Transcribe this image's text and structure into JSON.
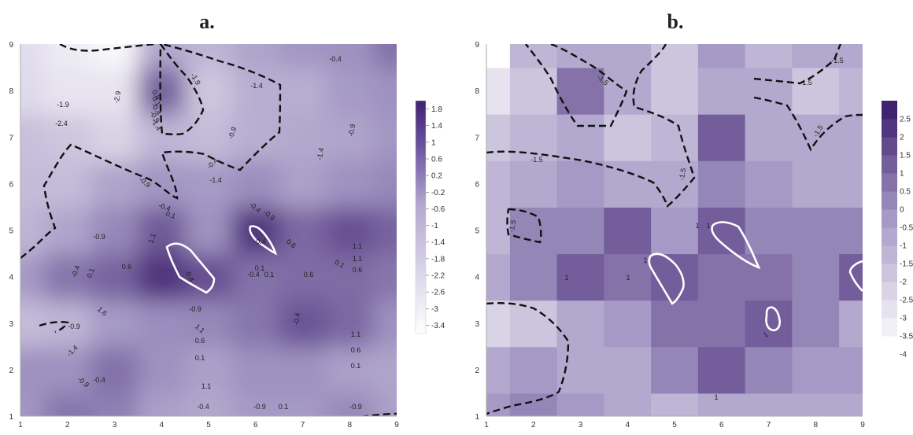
{
  "colors": {
    "low": "#ffffff",
    "mid": "#a497c4",
    "high": "#3f2270",
    "neg_contour": "#111111",
    "pos_contour": "#ffffff"
  },
  "chart_data": [
    {
      "panel": "a.",
      "type": "heatmap",
      "style": "smooth",
      "x_ticks": [
        "1",
        "2",
        "3",
        "4",
        "5",
        "6",
        "7",
        "8",
        "9"
      ],
      "y_ticks": [
        "1",
        "2",
        "3",
        "4",
        "5",
        "6",
        "7",
        "8",
        "9"
      ],
      "xlim": [
        1,
        9
      ],
      "ylim": [
        1,
        9
      ],
      "colorbar": {
        "range": [
          -3.6,
          2.0
        ],
        "ticks": [
          "1.8",
          "1.4",
          "1",
          "0.6",
          "0.2",
          "-0.2",
          "-0.6",
          "-1",
          "-1.4",
          "-1.8",
          "-2.2",
          "-2.6",
          "-3",
          "-3.4"
        ]
      },
      "grid_z": [
        [
          -0.5,
          0.2,
          0.0,
          -0.8,
          -1.0,
          -0.6,
          -0.6,
          -0.2,
          -0.8
        ],
        [
          -0.4,
          -0.4,
          0.3,
          -0.4,
          -0.8,
          -0.4,
          -0.4,
          -0.8,
          -0.9
        ],
        [
          -1.6,
          -1.4,
          -0.6,
          -0.3,
          -0.2,
          0.2,
          0.9,
          0.5,
          -0.4
        ],
        [
          -0.6,
          0.2,
          0.6,
          1.6,
          1.0,
          0.3,
          0.4,
          0.4,
          0.2
        ],
        [
          -1.4,
          -0.9,
          -0.2,
          0.8,
          -0.4,
          1.6,
          0.5,
          1.0,
          0.6
        ],
        [
          -1.6,
          -1.6,
          -0.9,
          -0.5,
          -0.6,
          -0.3,
          -0.8,
          -0.4,
          -0.2
        ],
        [
          -1.7,
          -1.9,
          -2.3,
          -1.4,
          -1.6,
          -1.2,
          -1.0,
          -0.9,
          -0.5
        ],
        [
          -2.5,
          -2.8,
          -2.8,
          0.6,
          -1.9,
          -1.2,
          -1.2,
          -0.6,
          -0.4
        ],
        [
          -2.6,
          -3.0,
          -3.4,
          -1.0,
          -1.4,
          -0.9,
          -0.5,
          -0.4,
          0.3
        ]
      ],
      "contour_labels": [
        "-2.9",
        "0.6",
        "0.1",
        "-0.4",
        "-0.9",
        "-1.4",
        "-1.9",
        "-2.4",
        "-1.9",
        "-1.4",
        "-0.9",
        "-0.4",
        "-1.4",
        "-0.9",
        "-1.4",
        "-0.9",
        "-0.4",
        "-0.4",
        "-0.9",
        "-0.4",
        "0.1",
        "-0.9",
        "1.1",
        "0.6",
        "0.1",
        "0.6",
        "-0.4",
        "0.1",
        "-0.4",
        "0.1",
        "0.6",
        "1.1",
        "1.1",
        "0.6",
        "0.1",
        "-0.4",
        "1.6",
        "-0.9",
        "1.1",
        "0.6",
        "0.1",
        "-0.4",
        "1.1",
        "0.6",
        "0.1",
        "-0.4",
        "-0.9",
        "-0.9",
        "-1.4",
        "-0.9",
        "-0.4",
        "0.1",
        "-0.9",
        "-0.4",
        "1.1"
      ]
    },
    {
      "panel": "b.",
      "type": "heatmap",
      "style": "filled-contour",
      "x_ticks": [
        "1",
        "2",
        "3",
        "4",
        "5",
        "6",
        "7",
        "8",
        "9"
      ],
      "y_ticks": [
        "1",
        "2",
        "3",
        "4",
        "5",
        "6",
        "7",
        "8",
        "9"
      ],
      "xlim": [
        1,
        9
      ],
      "ylim": [
        1,
        9
      ],
      "colorbar": {
        "range": [
          -4,
          3
        ],
        "levels": [
          -4,
          -3.5,
          -3,
          -2.5,
          -2,
          -1.5,
          -1,
          -0.5,
          0,
          0.5,
          1,
          1.5,
          2,
          2.5,
          3
        ],
        "ticks": [
          "2.5",
          "2",
          "1.5",
          "1",
          "0.5",
          "0",
          "-0.5",
          "-1",
          "-1.5",
          "-2",
          "-2.5",
          "-3",
          "-3.5",
          "-4"
        ]
      },
      "grid_z": [
        [
          -0.5,
          0.0,
          -0.5,
          -1.0,
          -1.2,
          -0.6,
          -1.0,
          -0.6,
          -0.6
        ],
        [
          -1.0,
          -0.5,
          -0.6,
          -0.6,
          0.0,
          1.2,
          0.3,
          -0.4,
          -0.4
        ],
        [
          -2.2,
          -1.6,
          -0.8,
          -0.5,
          0.5,
          0.5,
          1.3,
          0.2,
          -0.6
        ],
        [
          -1.0,
          0.0,
          1.1,
          0.8,
          1.2,
          0.6,
          0.6,
          0.2,
          1.2
        ],
        [
          -1.4,
          0.0,
          0.3,
          1.0,
          -0.3,
          1.2,
          0.4,
          0.2,
          0.0
        ],
        [
          -1.3,
          -0.9,
          -0.5,
          -0.6,
          -1.0,
          0.2,
          -0.4,
          -0.6,
          -0.8
        ],
        [
          -1.6,
          -1.3,
          -1.0,
          -1.6,
          -1.2,
          1.0,
          -0.6,
          -1.0,
          -0.9
        ],
        [
          -2.6,
          -1.6,
          0.8,
          -1.0,
          -1.6,
          -0.6,
          -1.0,
          -1.6,
          -1.2
        ],
        [
          -3.8,
          -1.4,
          -0.8,
          -0.9,
          -1.6,
          -0.5,
          -1.3,
          -1.0,
          -0.8
        ]
      ],
      "contour_labels": [
        "-1.5",
        "-1.5",
        "-1.5",
        "-1.5",
        "-1.5",
        "-1.5",
        "-1.5",
        "1",
        "1",
        "1",
        "1",
        "1",
        "1",
        "1"
      ]
    }
  ]
}
